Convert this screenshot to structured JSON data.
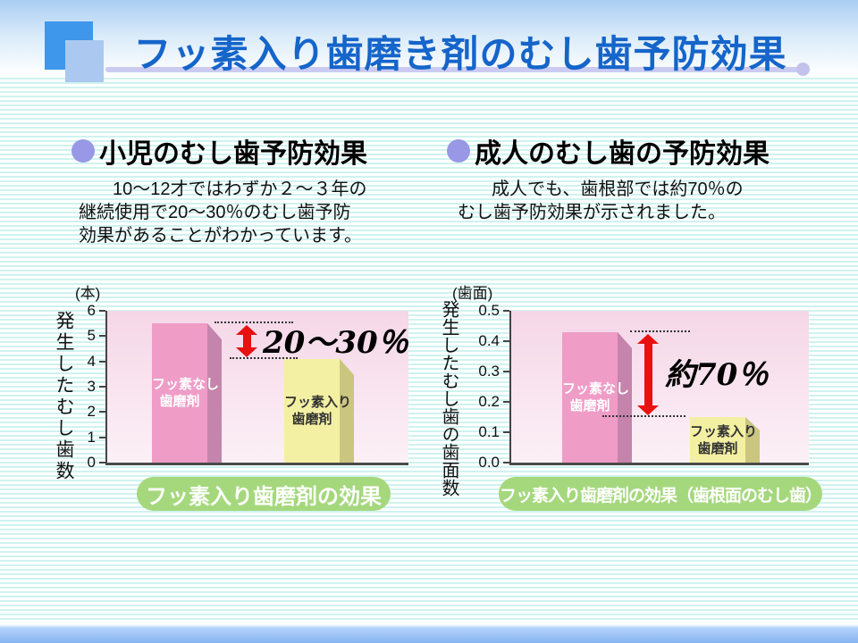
{
  "title": "フッ素入り歯磨き剤のむし歯予防効果",
  "sections": {
    "child": {
      "heading": "小児のむし歯予防効果",
      "body_lines": [
        "10〜12才ではわずか２〜３年の",
        "継続使用で20〜30％のむし歯予防",
        "効果があることがわかっています。"
      ]
    },
    "adult": {
      "heading": "成人のむし歯の予防効果",
      "body_lines": [
        "成人でも、歯根部では約70％の",
        "むし歯予防効果が示されました。"
      ]
    }
  },
  "chart_data": [
    {
      "type": "bar",
      "title": "フッ素入り歯磨剤の効果",
      "unit_label": "(本)",
      "ylabel": "発生したむし歯数",
      "ylim": [
        0,
        6
      ],
      "yticks": [
        "6",
        "5",
        "4",
        "3",
        "2",
        "1",
        "0"
      ],
      "categories": [
        "フッ素なし歯磨剤",
        "フッ素入り歯磨剤"
      ],
      "bar_labels": [
        [
          "フッ素なし",
          "歯磨剤"
        ],
        [
          "フッ素入り",
          "歯磨剤"
        ]
      ],
      "values": [
        5.5,
        4.1
      ],
      "annotation": "20〜30％",
      "grid": false,
      "legend": "none"
    },
    {
      "type": "bar",
      "title": "フッ素入り歯磨剤の効果（歯根面のむし歯）",
      "unit_label": "(歯面)",
      "ylabel": "発生したむし歯の歯面数",
      "ylim": [
        0,
        0.5
      ],
      "yticks": [
        "0.5",
        "0.4",
        "0.3",
        "0.2",
        "0.1",
        "0.0"
      ],
      "categories": [
        "フッ素なし歯磨剤",
        "フッ素入り歯磨剤"
      ],
      "bar_labels": [
        [
          "フッ素なし",
          "歯磨剤"
        ],
        [
          "フッ素入り",
          "歯磨剤"
        ]
      ],
      "values": [
        0.43,
        0.15
      ],
      "annotation": "約70％",
      "grid": false,
      "legend": "none"
    }
  ],
  "colors": {
    "title_text": "#1565ca",
    "stripe": "#cff3ef",
    "accent_rule": "#cbcbf2",
    "bullet": "#9898e6",
    "bar_pink": "#ef9cc7",
    "bar_pink_side": "#c584ab",
    "bar_yellow": "#f3f0a3",
    "bar_yellow_side": "#cbc67f",
    "caption_pill": "#a5d87d",
    "arrow_red": "#e81010",
    "top_band": "#a9cdf3",
    "bottom_band": "#86b3f1"
  }
}
